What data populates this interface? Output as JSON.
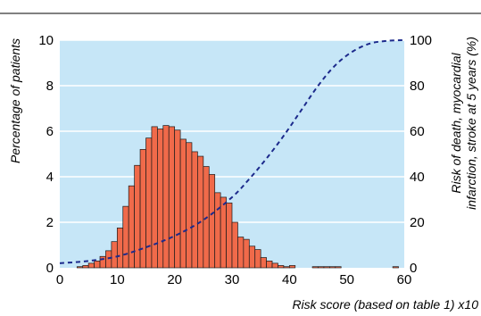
{
  "chart_data": {
    "type": "bar",
    "title": "",
    "xlabel": "Risk score (based on table 1) x10",
    "ylabel": "Percentage of patients",
    "y2label_line1": "Risk of death, myocardial",
    "y2label_line2": "infarction, stroke at 5 years (%)",
    "xlim": [
      0,
      60
    ],
    "ylim": [
      0,
      10
    ],
    "y2lim": [
      0,
      100
    ],
    "xticks": [
      "0",
      "10",
      "20",
      "30",
      "40",
      "50",
      "60"
    ],
    "yticks": [
      "0",
      "2",
      "4",
      "6",
      "8",
      "10"
    ],
    "y2ticks": [
      "0",
      "20",
      "40",
      "60",
      "80",
      "100"
    ],
    "grid": true,
    "colors": {
      "plot_background": "#c6e6f7",
      "bar_fill": "#f06a4a",
      "bar_stroke": "#1a1a1a",
      "curve": "#1c2a8c",
      "grid": "#ffffff"
    },
    "histogram": {
      "bin_width": 1,
      "x": [
        3,
        4,
        5,
        6,
        7,
        8,
        9,
        10,
        11,
        12,
        13,
        14,
        15,
        16,
        17,
        18,
        19,
        20,
        21,
        22,
        23,
        24,
        25,
        26,
        27,
        28,
        29,
        30,
        31,
        32,
        33,
        34,
        35,
        36,
        37,
        38,
        39,
        40,
        44,
        45,
        46,
        47,
        48,
        58
      ],
      "values": [
        0.05,
        0.1,
        0.2,
        0.3,
        0.5,
        0.75,
        1.15,
        1.75,
        2.7,
        3.6,
        4.5,
        5.2,
        5.7,
        6.2,
        6.1,
        6.25,
        6.2,
        6.05,
        5.65,
        5.5,
        5.1,
        4.9,
        4.45,
        4.1,
        3.3,
        3.1,
        2.85,
        2.0,
        1.35,
        1.25,
        0.95,
        0.8,
        0.45,
        0.3,
        0.2,
        0.1,
        0.05,
        0.1,
        0.05,
        0.05,
        0.05,
        0.05,
        0.05,
        0.05
      ]
    },
    "risk_curve": {
      "name": "Risk of death, myocardial infarction, stroke at 5 years (%)",
      "style": "dashed",
      "x": [
        0,
        5,
        10,
        15,
        20,
        25,
        30,
        33,
        36,
        39,
        42,
        45,
        48,
        51,
        54,
        57,
        60
      ],
      "y": [
        2,
        3,
        5,
        9,
        14,
        21,
        31,
        39,
        48,
        58,
        69,
        80,
        89,
        95,
        98.5,
        99.7,
        100
      ]
    }
  }
}
